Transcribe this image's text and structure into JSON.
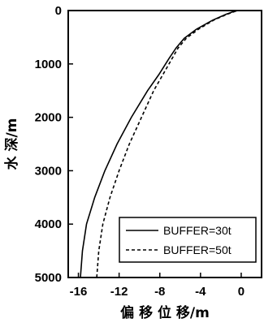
{
  "chart_data": {
    "type": "line",
    "xlabel": "偏 移 位 移/m",
    "ylabel": "水 深/m",
    "xlim": [
      -17,
      2
    ],
    "ylim": [
      0,
      5000
    ],
    "y_inverted": true,
    "x_ticks": [
      -16,
      -12,
      -8,
      -4,
      0
    ],
    "y_ticks": [
      0,
      1000,
      2000,
      3000,
      4000,
      5000
    ],
    "grid": false,
    "legend_position": "bottom-right",
    "series": [
      {
        "name": "BUFFER=30t",
        "style": "solid",
        "x": [
          -15.8,
          -15.6,
          -15.2,
          -14.4,
          -13.4,
          -12.2,
          -10.8,
          -9.2,
          -8.1,
          -7.1,
          -6.4,
          -5.6,
          -4.4,
          -2.8,
          -1.5,
          -0.7,
          -0.3
        ],
        "y": [
          5000,
          4500,
          4000,
          3500,
          3000,
          2500,
          2000,
          1500,
          1200,
          900,
          700,
          520,
          350,
          180,
          70,
          15,
          0
        ]
      },
      {
        "name": "BUFFER=50t",
        "style": "dashed",
        "x": [
          -14.2,
          -14.0,
          -13.6,
          -12.9,
          -12.0,
          -11.0,
          -9.8,
          -8.6,
          -7.7,
          -6.8,
          -6.2,
          -5.4,
          -4.2,
          -2.7,
          -1.4,
          -0.6,
          -0.3
        ],
        "y": [
          5000,
          4500,
          4000,
          3500,
          3000,
          2500,
          2000,
          1500,
          1200,
          900,
          700,
          520,
          350,
          180,
          70,
          15,
          0
        ]
      }
    ]
  }
}
